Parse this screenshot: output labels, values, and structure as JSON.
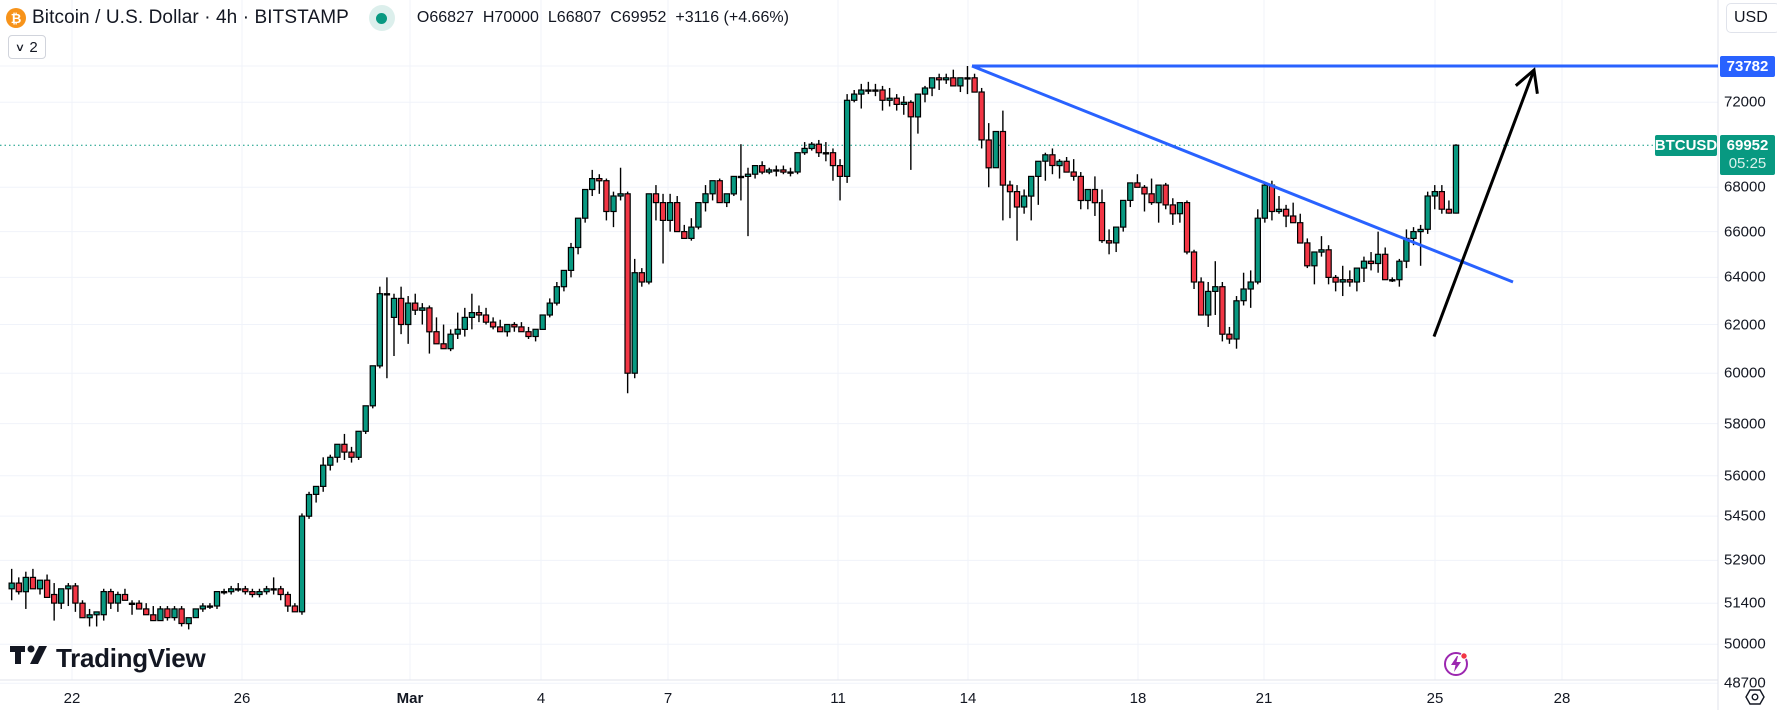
{
  "header": {
    "symbol_icon": "bitcoin-icon",
    "symbol_icon_glyph": "₿",
    "title": "Bitcoin / U.S. Dollar · 4h · BITSTAMP",
    "market_status_icon": "market-open-dot-icon",
    "ohlc": {
      "open": "O66827",
      "high": "H70000",
      "low": "L66807",
      "close": "C69952",
      "change": "+3116 (+4.66%)"
    },
    "collapse_label": "2",
    "collapse_icon": "chevron-down-icon"
  },
  "currency": {
    "label": "USD",
    "icon": "chevron-down-icon"
  },
  "tags": {
    "horizontal_line_price": "73782",
    "symbol": "BTCUSD",
    "last_price": "69952",
    "countdown": "05:25"
  },
  "watermark": {
    "text": "TradingView"
  },
  "colors": {
    "up": "#089981",
    "down": "#F23645",
    "drawing_blue": "#2962FF",
    "arrow": "#000000",
    "grid": "#F0F3FA",
    "last_price_line": "#089981"
  },
  "chart_data": {
    "type": "candlestick",
    "title": "Bitcoin / U.S. Dollar · 4h · BITSTAMP",
    "symbol": "BTCUSD",
    "interval": "4h",
    "exchange": "BITSTAMP",
    "yscale": "log",
    "ylim": [
      48400,
      74500
    ],
    "y_ticks": [
      73782,
      72000,
      68000,
      66000,
      64000,
      62000,
      60000,
      58000,
      56000,
      54500,
      52900,
      51400,
      50000,
      48700
    ],
    "y_tick_labels": [
      "73782",
      "72000",
      "68000",
      "66000",
      "64000",
      "62000",
      "60000",
      "58000",
      "56000",
      "54500",
      "52900",
      "51400",
      "50000",
      "48700"
    ],
    "grid_prices": [
      72000,
      68000,
      66000,
      64000,
      62000,
      60000,
      58000,
      56000,
      54500,
      52900,
      51400,
      50000,
      48700
    ],
    "x_ticks": [
      {
        "label": "22",
        "x": 72
      },
      {
        "label": "26",
        "x": 242
      },
      {
        "label": "Mar",
        "x": 410
      },
      {
        "label": "4",
        "x": 541
      },
      {
        "label": "7",
        "x": 668
      },
      {
        "label": "11",
        "x": 838
      },
      {
        "label": "14",
        "x": 968
      },
      {
        "label": "18",
        "x": 1138
      },
      {
        "label": "21",
        "x": 1264
      },
      {
        "label": "25",
        "x": 1435
      },
      {
        "label": "28",
        "x": 1562
      }
    ],
    "first_candle_x": 5,
    "candle_spacing": 7.08,
    "last": {
      "open": 66827,
      "high": 70000,
      "low": 66807,
      "close": 69952,
      "change": 3116,
      "change_pct": 4.66
    },
    "candles_ohlc": [
      [
        51900,
        52600,
        51500,
        52100
      ],
      [
        52100,
        52300,
        51700,
        51800
      ],
      [
        51800,
        52500,
        51200,
        52300
      ],
      [
        52300,
        52600,
        51900,
        51900
      ],
      [
        51900,
        52200,
        51700,
        52200
      ],
      [
        52200,
        52400,
        51700,
        51600
      ],
      [
        51700,
        52100,
        50800,
        51400
      ],
      [
        51400,
        51800,
        51200,
        51900
      ],
      [
        51900,
        52100,
        51300,
        52000
      ],
      [
        52000,
        52100,
        51100,
        51400
      ],
      [
        51400,
        51500,
        50900,
        50900
      ],
      [
        50900,
        51200,
        50600,
        51000
      ],
      [
        51000,
        51100,
        50600,
        51100
      ],
      [
        51000,
        51900,
        50800,
        51800
      ],
      [
        51800,
        51900,
        51200,
        51400
      ],
      [
        51400,
        51800,
        51100,
        51700
      ],
      [
        51700,
        51900,
        51500,
        51500
      ],
      [
        51400,
        51500,
        51000,
        51400
      ],
      [
        51400,
        51500,
        51300,
        51200
      ],
      [
        51200,
        51400,
        51000,
        51000
      ],
      [
        51000,
        51300,
        50900,
        50800
      ],
      [
        50800,
        51300,
        50900,
        51200
      ],
      [
        51200,
        51300,
        50800,
        50900
      ],
      [
        50900,
        51300,
        50800,
        51200
      ],
      [
        51200,
        51300,
        50600,
        50700
      ],
      [
        50700,
        50800,
        50500,
        50900
      ],
      [
        50900,
        51200,
        50900,
        51200
      ],
      [
        51200,
        51400,
        51100,
        51300
      ],
      [
        51300,
        51400,
        51200,
        51300
      ],
      [
        51300,
        51800,
        51200,
        51800
      ],
      [
        51800,
        51900,
        51700,
        51800
      ],
      [
        51800,
        52000,
        51700,
        51900
      ],
      [
        51900,
        52100,
        51800,
        51900
      ],
      [
        51900,
        52000,
        51700,
        51800
      ],
      [
        51800,
        51900,
        51600,
        51700
      ],
      [
        51700,
        51900,
        51600,
        51800
      ],
      [
        51800,
        52000,
        51700,
        51900
      ],
      [
        51900,
        52300,
        51700,
        51900
      ],
      [
        51900,
        52000,
        51500,
        51700
      ],
      [
        51700,
        51800,
        51100,
        51300
      ],
      [
        51300,
        51400,
        51100,
        51100
      ],
      [
        51100,
        54600,
        51000,
        54500
      ],
      [
        54500,
        55400,
        54400,
        55300
      ],
      [
        55300,
        55600,
        55000,
        55600
      ],
      [
        55600,
        56700,
        55400,
        56400
      ],
      [
        56400,
        56800,
        56200,
        56700
      ],
      [
        56700,
        57000,
        56500,
        57200
      ],
      [
        57200,
        57600,
        56600,
        56900
      ],
      [
        56900,
        57100,
        56500,
        56700
      ],
      [
        56700,
        57700,
        56600,
        57700
      ],
      [
        57700,
        58600,
        57600,
        58700
      ],
      [
        58700,
        59500,
        58600,
        60300
      ],
      [
        60300,
        63600,
        60200,
        63300
      ],
      [
        63300,
        64000,
        59800,
        63300
      ],
      [
        62300,
        63300,
        60700,
        63100
      ],
      [
        63100,
        63600,
        61600,
        62000
      ],
      [
        62000,
        63200,
        61200,
        62900
      ],
      [
        62900,
        63300,
        62400,
        62600
      ],
      [
        62600,
        62900,
        62000,
        62700
      ],
      [
        62700,
        62800,
        60800,
        61700
      ],
      [
        61700,
        62300,
        61200,
        61200
      ],
      [
        61200,
        62000,
        61100,
        61000
      ],
      [
        61000,
        61800,
        60900,
        61600
      ],
      [
        61600,
        62500,
        61400,
        61800
      ],
      [
        61800,
        62700,
        61500,
        62300
      ],
      [
        62300,
        63300,
        61800,
        62500
      ],
      [
        62500,
        62800,
        62100,
        62400
      ],
      [
        62400,
        62700,
        62000,
        62100
      ],
      [
        62100,
        62300,
        61800,
        61900
      ],
      [
        61900,
        62200,
        61700,
        61700
      ],
      [
        61700,
        62000,
        61500,
        62000
      ],
      [
        62000,
        62100,
        61700,
        61900
      ],
      [
        61900,
        62100,
        61700,
        61700
      ],
      [
        61700,
        61900,
        61400,
        61500
      ],
      [
        61500,
        61800,
        61300,
        61800
      ],
      [
        61800,
        62300,
        61800,
        62400
      ],
      [
        62400,
        63100,
        62300,
        62900
      ],
      [
        62900,
        63800,
        62800,
        63600
      ],
      [
        63600,
        64300,
        63400,
        64300
      ],
      [
        64300,
        65500,
        64000,
        65300
      ],
      [
        65300,
        66500,
        65000,
        66600
      ],
      [
        66600,
        67800,
        66400,
        67900
      ],
      [
        67900,
        68800,
        67600,
        68400
      ],
      [
        68400,
        68600,
        67700,
        68300
      ],
      [
        68300,
        68400,
        66500,
        66900
      ],
      [
        66900,
        67800,
        66200,
        67600
      ],
      [
        67600,
        68900,
        67400,
        67700
      ],
      [
        67700,
        67800,
        59200,
        60000
      ],
      [
        60000,
        64800,
        59800,
        64200
      ],
      [
        64200,
        64400,
        63600,
        63800
      ],
      [
        63800,
        67700,
        63700,
        67700
      ],
      [
        67700,
        68100,
        66500,
        67300
      ],
      [
        67300,
        67700,
        64600,
        66500
      ],
      [
        66500,
        67700,
        66000,
        67300
      ],
      [
        67300,
        67600,
        66000,
        66000
      ],
      [
        66000,
        66300,
        65700,
        65700
      ],
      [
        65700,
        66600,
        65600,
        66200
      ],
      [
        66200,
        67000,
        66100,
        67300
      ],
      [
        67300,
        68100,
        66900,
        67700
      ],
      [
        67700,
        68200,
        67400,
        68300
      ],
      [
        68300,
        68400,
        67500,
        67300
      ],
      [
        67300,
        67700,
        67100,
        67700
      ],
      [
        67700,
        68200,
        67600,
        68500
      ],
      [
        68500,
        70000,
        67400,
        68500
      ],
      [
        68500,
        68900,
        65800,
        68600
      ],
      [
        68600,
        68900,
        68400,
        69000
      ],
      [
        69000,
        69200,
        68600,
        68700
      ],
      [
        68700,
        68900,
        68600,
        68800
      ],
      [
        68800,
        69000,
        68500,
        68800
      ],
      [
        68800,
        69000,
        68600,
        68700
      ],
      [
        68700,
        68900,
        68500,
        68700
      ],
      [
        68700,
        69500,
        68600,
        69600
      ],
      [
        69600,
        70100,
        69500,
        69800
      ],
      [
        69800,
        70100,
        69700,
        70000
      ],
      [
        70000,
        70200,
        69400,
        69600
      ],
      [
        69600,
        70100,
        69200,
        69600
      ],
      [
        69600,
        69800,
        68300,
        69000
      ],
      [
        69000,
        69300,
        67400,
        68500
      ],
      [
        68500,
        72400,
        68200,
        72100
      ],
      [
        72100,
        72600,
        72000,
        72400
      ],
      [
        72400,
        72900,
        71700,
        72600
      ],
      [
        72600,
        73000,
        72400,
        72600
      ],
      [
        72600,
        72900,
        72300,
        72600
      ],
      [
        72600,
        72800,
        71600,
        72100
      ],
      [
        72100,
        72700,
        71800,
        72200
      ],
      [
        72200,
        72400,
        71600,
        71900
      ],
      [
        71900,
        72300,
        71400,
        72000
      ],
      [
        72000,
        72100,
        68800,
        71300
      ],
      [
        71300,
        72000,
        70500,
        72400
      ],
      [
        72400,
        72800,
        72000,
        72700
      ],
      [
        72700,
        73100,
        72300,
        73200
      ],
      [
        73200,
        73400,
        72600,
        73100
      ],
      [
        73100,
        73400,
        72900,
        73200
      ],
      [
        73200,
        73600,
        72900,
        72800
      ],
      [
        72800,
        73100,
        72500,
        73200
      ],
      [
        73200,
        73782,
        72400,
        73200
      ],
      [
        73200,
        73400,
        72500,
        72500
      ],
      [
        72500,
        72700,
        69800,
        70200
      ],
      [
        70200,
        71000,
        68000,
        68900
      ],
      [
        68900,
        70600,
        68900,
        70600
      ],
      [
        70600,
        71600,
        66500,
        68100
      ],
      [
        68100,
        68300,
        66600,
        67800
      ],
      [
        67800,
        68100,
        65600,
        67100
      ],
      [
        67100,
        67900,
        66800,
        67600
      ],
      [
        67600,
        68400,
        66500,
        68500
      ],
      [
        68500,
        69200,
        67200,
        69200
      ],
      [
        69200,
        69600,
        68300,
        69500
      ],
      [
        69500,
        69800,
        68600,
        69000
      ],
      [
        69000,
        69300,
        68400,
        69200
      ],
      [
        69200,
        69400,
        68700,
        68700
      ],
      [
        68700,
        69300,
        68300,
        68500
      ],
      [
        68500,
        68700,
        67000,
        67400
      ],
      [
        67400,
        67800,
        67000,
        67900
      ],
      [
        67900,
        68500,
        66700,
        67300
      ],
      [
        67300,
        67900,
        65500,
        65600
      ],
      [
        65600,
        66100,
        65000,
        65500
      ],
      [
        65500,
        66000,
        65100,
        66200
      ],
      [
        66200,
        67000,
        66000,
        67400
      ],
      [
        67400,
        68000,
        67100,
        68200
      ],
      [
        68200,
        68600,
        68000,
        68000
      ],
      [
        68000,
        68100,
        66900,
        67700
      ],
      [
        67700,
        68400,
        67200,
        67300
      ],
      [
        67300,
        68100,
        66400,
        68100
      ],
      [
        68100,
        68200,
        67000,
        67200
      ],
      [
        67200,
        67500,
        66300,
        66800
      ],
      [
        66800,
        67200,
        66400,
        67300
      ],
      [
        67300,
        67400,
        65000,
        65100
      ],
      [
        65100,
        65200,
        63500,
        63800
      ],
      [
        63800,
        64000,
        62400,
        62400
      ],
      [
        62400,
        63800,
        61900,
        63400
      ],
      [
        63400,
        64700,
        62400,
        63600
      ],
      [
        63600,
        63800,
        61300,
        61600
      ],
      [
        61600,
        61900,
        61200,
        61400
      ],
      [
        61400,
        63200,
        61000,
        63000
      ],
      [
        63000,
        64200,
        62800,
        63500
      ],
      [
        63500,
        64300,
        62700,
        63800
      ],
      [
        63800,
        67000,
        63700,
        66600
      ],
      [
        66600,
        68200,
        66400,
        68100
      ],
      [
        68100,
        68300,
        66500,
        66900
      ],
      [
        66900,
        67600,
        66800,
        67000
      ],
      [
        67000,
        67200,
        66200,
        66700
      ],
      [
        66700,
        67300,
        66500,
        66400
      ],
      [
        66400,
        66800,
        65700,
        65500
      ],
      [
        65500,
        65700,
        64400,
        64500
      ],
      [
        64500,
        65000,
        63700,
        65100
      ],
      [
        65100,
        65800,
        64900,
        65200
      ],
      [
        65200,
        65400,
        63700,
        64000
      ],
      [
        64000,
        64100,
        63400,
        63800
      ],
      [
        63800,
        64500,
        63200,
        63900
      ],
      [
        63900,
        64300,
        63600,
        63800
      ],
      [
        63800,
        64400,
        63400,
        64400
      ],
      [
        64400,
        64900,
        63800,
        64700
      ],
      [
        64700,
        65100,
        64300,
        64600
      ],
      [
        64600,
        66000,
        64200,
        65000
      ],
      [
        65000,
        65300,
        63900,
        63900
      ],
      [
        63900,
        64000,
        63800,
        63900
      ],
      [
        63900,
        64800,
        63600,
        64700
      ],
      [
        64700,
        66100,
        64400,
        65700
      ],
      [
        65700,
        66200,
        65400,
        66000
      ],
      [
        66000,
        66300,
        64500,
        66100
      ],
      [
        66100,
        67800,
        65900,
        67600
      ],
      [
        67600,
        68100,
        67000,
        67800
      ],
      [
        67800,
        68100,
        66800,
        67000
      ],
      [
        67000,
        67400,
        66800,
        66827
      ],
      [
        66827,
        70000,
        66807,
        69952
      ]
    ],
    "drawings": [
      {
        "type": "horizontal_ray",
        "price": 73782,
        "x_start": 972,
        "color": "#2962FF",
        "label": "73782"
      },
      {
        "type": "trend_line",
        "from": {
          "x": 972,
          "price": 73782
        },
        "to": {
          "x": 1513,
          "price": 63800
        },
        "color": "#2962FF"
      },
      {
        "type": "arrow",
        "from": {
          "x": 1434,
          "price": 61500
        },
        "to": {
          "x": 1534,
          "price": 73782
        },
        "color": "#000000"
      }
    ],
    "last_price_line": {
      "price": 69952,
      "style": "dotted",
      "color": "#089981"
    }
  },
  "toolbar": {
    "alert_icon": "lightning-alert-icon",
    "settings_icon": "settings-hexagon-icon"
  }
}
